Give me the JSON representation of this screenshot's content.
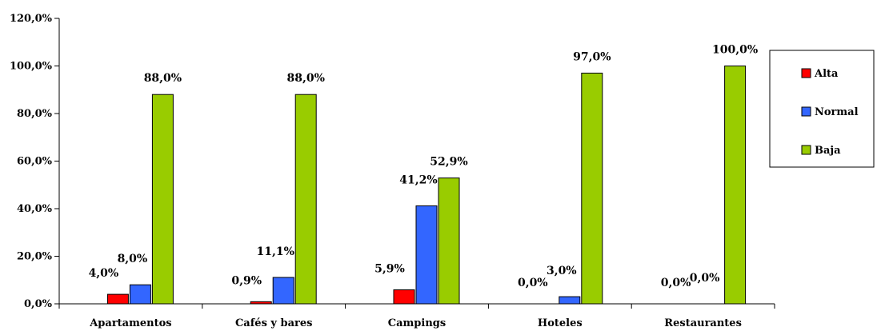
{
  "chart_data": {
    "type": "bar",
    "categories": [
      "Apartamentos",
      "Cafés y bares",
      "Campings",
      "Hoteles",
      "Restaurantes"
    ],
    "series": [
      {
        "name": "Alta",
        "color": "#ff0000",
        "values": [
          4.0,
          0.9,
          5.9,
          0.0,
          0.0
        ]
      },
      {
        "name": "Normal",
        "color": "#3366ff",
        "values": [
          8.0,
          11.1,
          41.2,
          3.0,
          0.0
        ]
      },
      {
        "name": "Baja",
        "color": "#99cc00",
        "values": [
          88.0,
          88.0,
          52.9,
          97.0,
          100.0
        ]
      }
    ],
    "data_labels": [
      [
        "4,0%",
        "0,9%",
        "5,9%",
        "0,0%",
        "0,0%"
      ],
      [
        "8,0%",
        "11,1%",
        "41,2%",
        "3,0%",
        "0,0%"
      ],
      [
        "88,0%",
        "88,0%",
        "52,9%",
        "97,0%",
        "100,0%"
      ]
    ],
    "ylim": [
      0,
      120
    ],
    "yticks": [
      0,
      20,
      40,
      60,
      80,
      100,
      120
    ],
    "ytick_labels": [
      "0,0%",
      "20,0%",
      "40,0%",
      "60,0%",
      "80,0%",
      "100,0%",
      "120,0%"
    ],
    "legend_position": "right",
    "grid": false
  }
}
